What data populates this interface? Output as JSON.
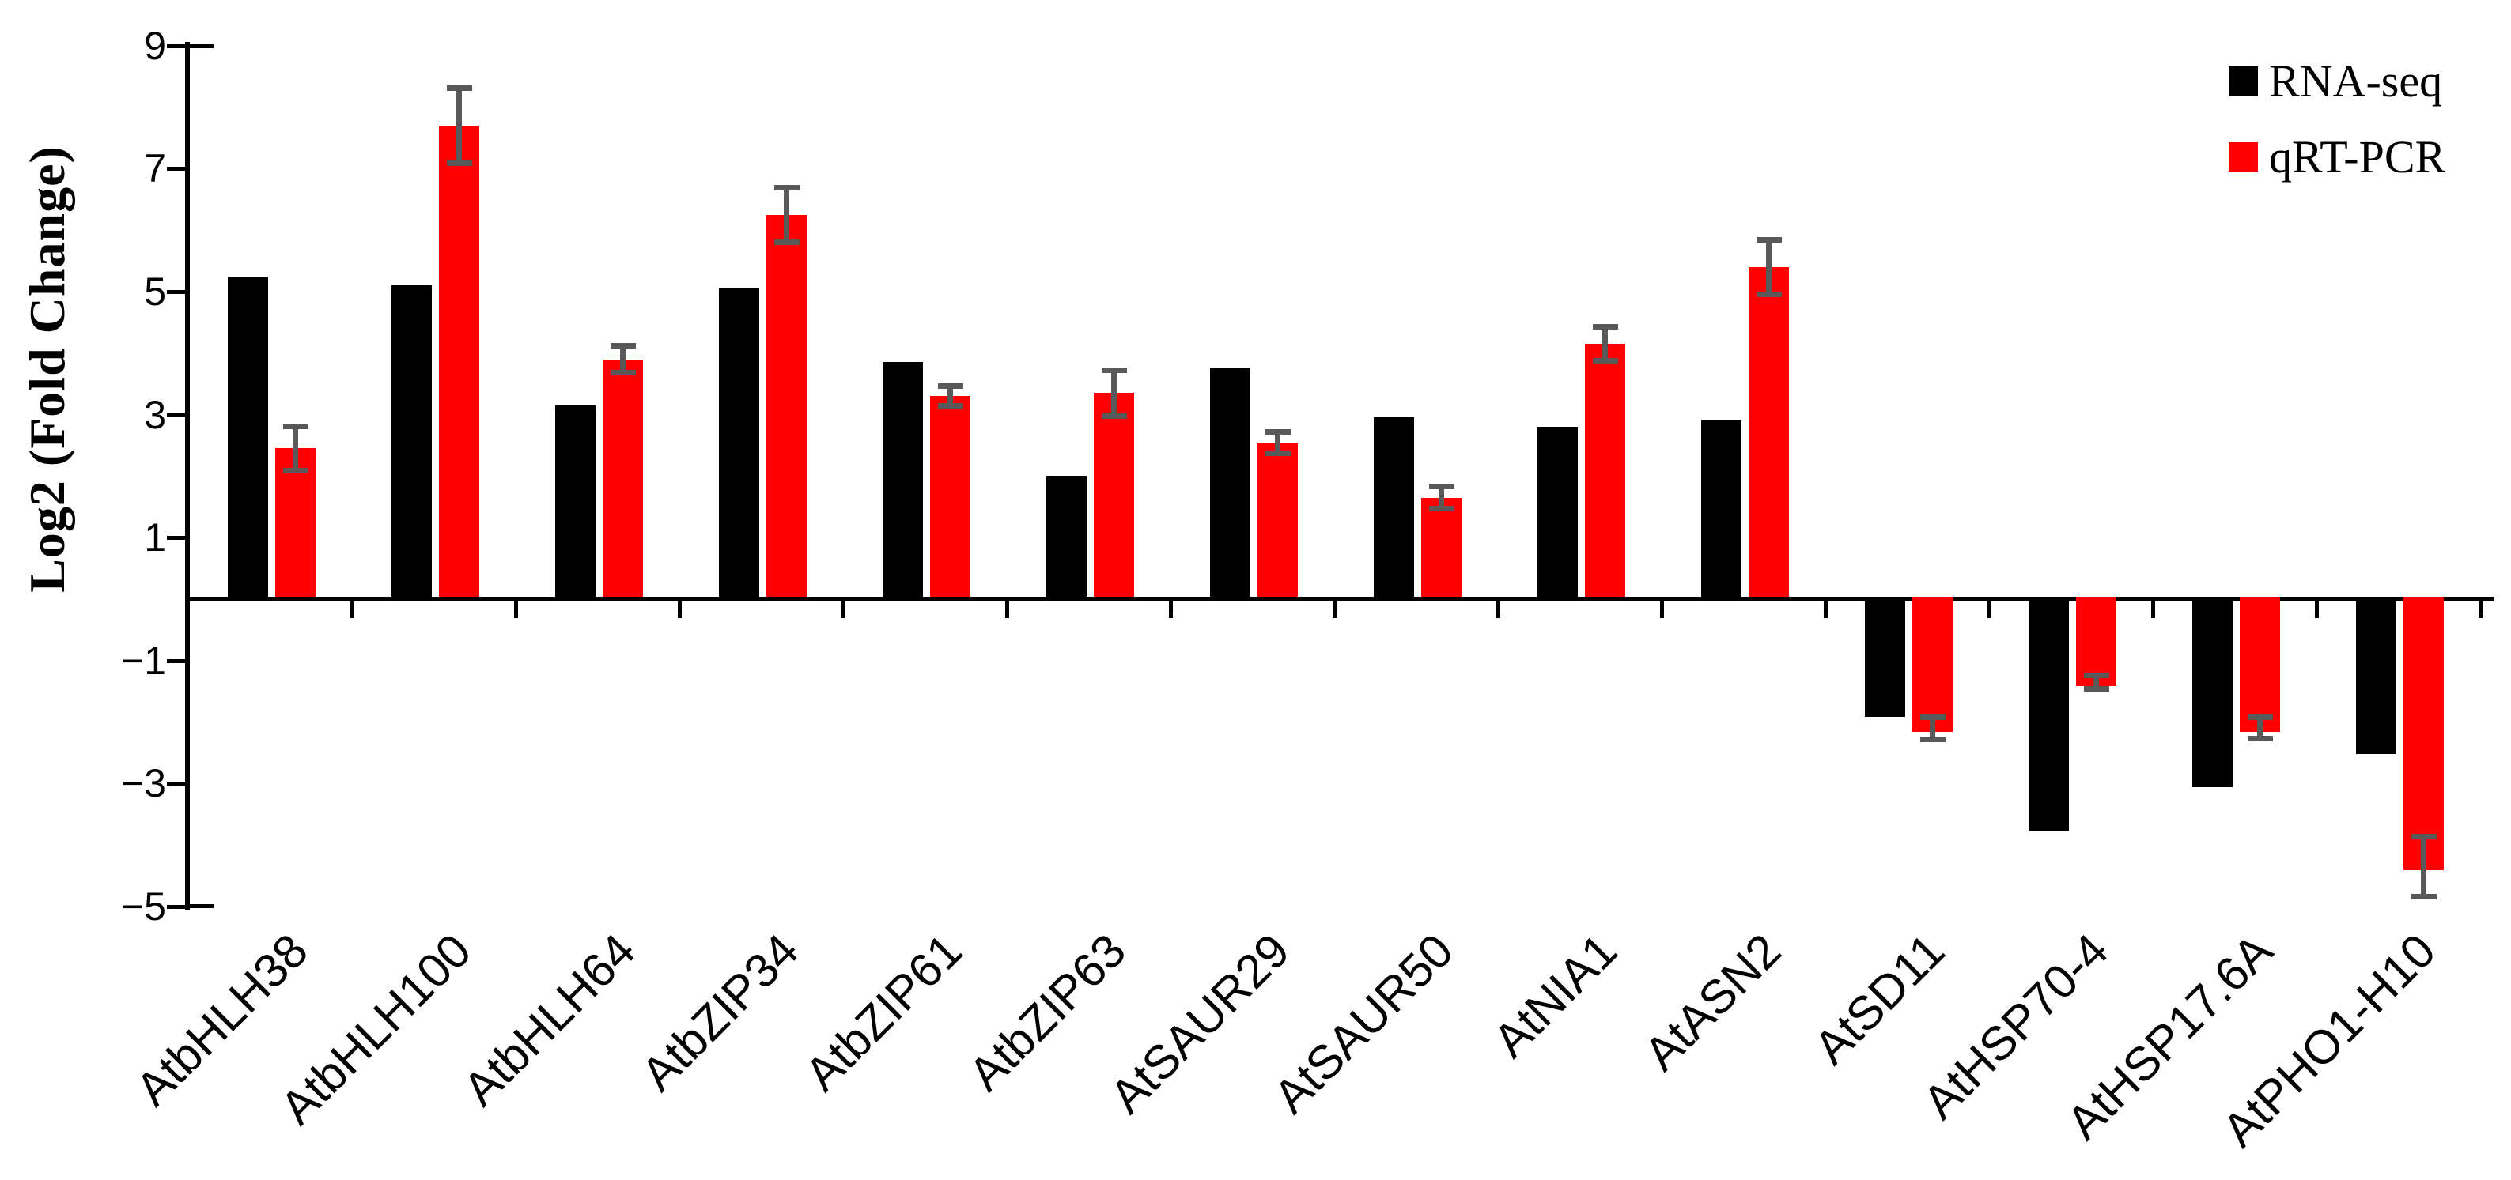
{
  "page": {
    "background": "#ffffff"
  },
  "legend": {
    "position": "top-right"
  },
  "chart_data": {
    "type": "bar",
    "title": "",
    "xlabel": "",
    "ylabel": "Log2 (Fold Change)",
    "ylim": [
      -5,
      9
    ],
    "yticks": [
      9,
      7,
      5,
      3,
      1,
      -1,
      -3,
      -5
    ],
    "grid": false,
    "legend_position": "top-right",
    "x_tick_label_rotation": 45,
    "error_bar_color": "#595959",
    "axis_color": "#000000",
    "categories": [
      "AtbHLH38",
      "AtbHLH100",
      "AtbHLH64",
      "AtbZIP34",
      "AtbZIP61",
      "AtbZIP63",
      "AtSAUR29",
      "AtSAUR50",
      "AtNIA1",
      "AtASN2",
      "AtSD11",
      "AtHSP70-4",
      "AtHSP17.6A",
      "AtPHO1-H10"
    ],
    "series": [
      {
        "name": "RNA-seq",
        "color": "#000000",
        "values": [
          5.25,
          5.1,
          3.15,
          5.05,
          3.85,
          2.0,
          3.75,
          2.95,
          2.8,
          2.9,
          -1.85,
          -3.7,
          -3.0,
          -2.45
        ]
      },
      {
        "name": "qRT-PCR",
        "color": "#ff0000",
        "values": [
          2.45,
          7.7,
          3.9,
          6.25,
          3.3,
          3.35,
          2.55,
          1.65,
          4.15,
          5.4,
          -2.1,
          -1.35,
          -2.1,
          -4.35
        ],
        "errors": [
          0.37,
          0.62,
          0.22,
          0.45,
          0.17,
          0.38,
          0.18,
          0.19,
          0.28,
          0.45,
          0.19,
          0.12,
          0.18,
          0.5
        ]
      }
    ]
  }
}
